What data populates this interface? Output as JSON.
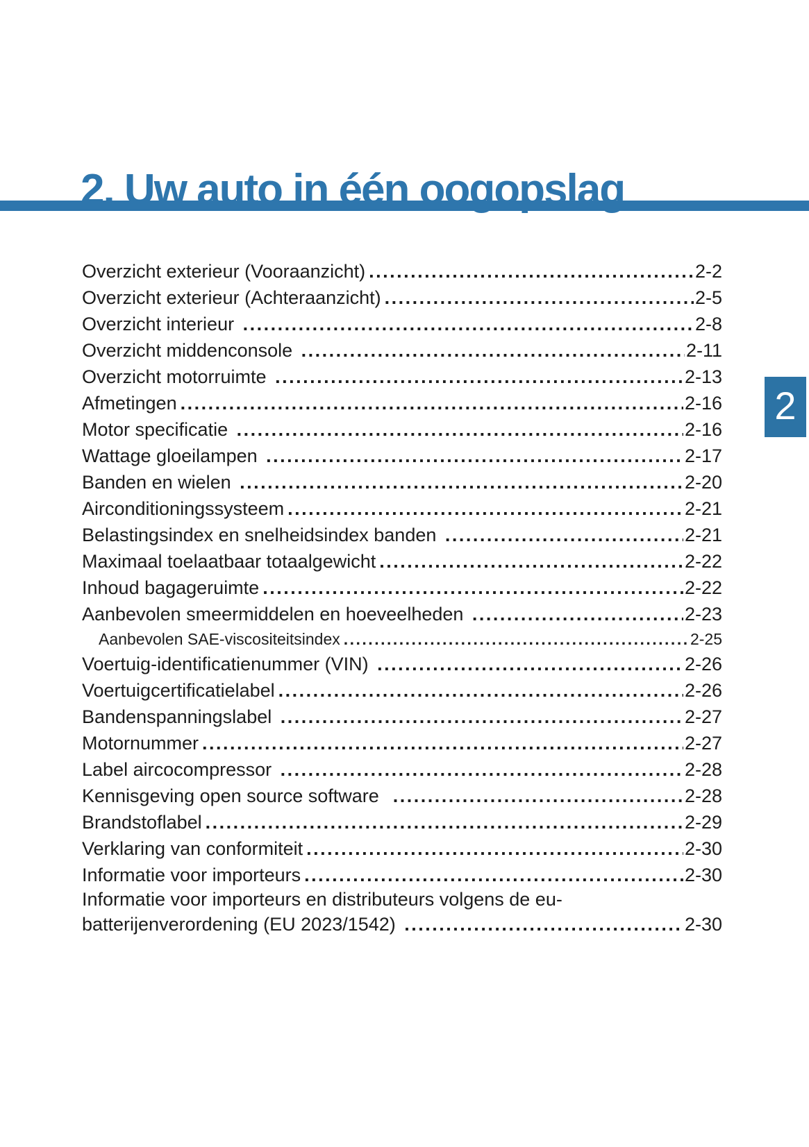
{
  "page": {
    "title": "2. Uw auto in één oogopslag",
    "chapter_tab_number": "2"
  },
  "colors": {
    "accent_blue": "#2e76ad",
    "tab_blue": "#2c73a5",
    "text": "#1c1c1c"
  },
  "toc": {
    "entries": [
      {
        "label": "Overzicht exterieur (Vooraanzicht)",
        "page": "2-2",
        "level": 1
      },
      {
        "label": "Overzicht exterieur (Achteraanzicht)",
        "page": "2-5",
        "level": 1
      },
      {
        "label": "Overzicht interieur ",
        "page": "2-8",
        "level": 1
      },
      {
        "label": "Overzicht middenconsole ",
        "page": "2-11",
        "level": 1
      },
      {
        "label": "Overzicht motorruimte ",
        "page": "2-13",
        "level": 1
      },
      {
        "label": "Afmetingen",
        "page": "2-16",
        "level": 1
      },
      {
        "label": "Motor specificatie ",
        "page": "2-16",
        "level": 1
      },
      {
        "label": "Wattage gloeilampen ",
        "page": "2-17",
        "level": 1
      },
      {
        "label": "Banden en wielen ",
        "page": "2-20",
        "level": 1
      },
      {
        "label": "Airconditioningssysteem",
        "page": "2-21",
        "level": 1
      },
      {
        "label": "Belastingsindex en snelheidsindex banden ",
        "page": "2-21",
        "level": 1
      },
      {
        "label": "Maximaal toelaatbaar totaalgewicht",
        "page": "2-22",
        "level": 1
      },
      {
        "label": "Inhoud bagageruimte",
        "page": "2-22",
        "level": 1
      },
      {
        "label": "Aanbevolen smeermiddelen en hoeveelheden ",
        "page": "2-23",
        "level": 1
      },
      {
        "label": "Aanbevolen SAE-viscositeitsindex",
        "page": "2-25",
        "level": 2
      },
      {
        "label": "Voertuig-identificatienummer (VIN) ",
        "page": "2-26",
        "level": 1
      },
      {
        "label": "Voertuigcertificatielabel",
        "page": "2-26",
        "level": 1
      },
      {
        "label": "Bandenspanningslabel ",
        "page": "2-27",
        "level": 1
      },
      {
        "label": "Motornummer",
        "page": "2-27",
        "level": 1
      },
      {
        "label": "Label aircocompressor ",
        "page": "2-28",
        "level": 1
      },
      {
        "label": "Kennisgeving open source software  ",
        "page": "2-28",
        "level": 1
      },
      {
        "label": "Brandstoflabel",
        "page": "2-29",
        "level": 1
      },
      {
        "label": "Verklaring van conformiteit",
        "page": "2-30",
        "level": 1
      },
      {
        "label": "Informatie voor importeurs",
        "page": "2-30",
        "level": 1
      },
      {
        "label": "Informatie voor importeurs en distributeurs volgens de eu-",
        "label2": "batterijenverordening (EU 2023/1542) ",
        "page": "2-30",
        "level": 1
      }
    ]
  }
}
